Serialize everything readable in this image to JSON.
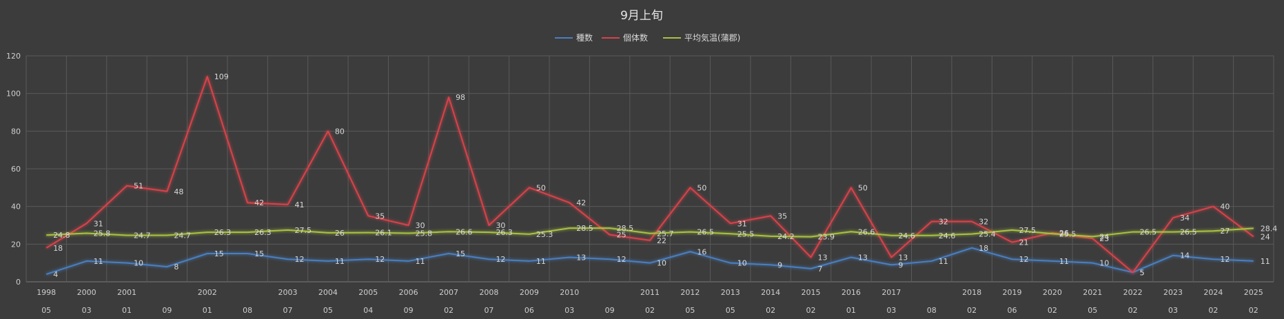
{
  "chart_data": {
    "type": "line",
    "title": "9月上旬",
    "xlabel": "",
    "ylabel": "",
    "ylim": [
      0,
      120
    ],
    "yticks": [
      "0",
      "20",
      "40",
      "60",
      "80",
      "100",
      "120"
    ],
    "grid": true,
    "legend_position": "top",
    "year_labels": [
      "1998",
      "2000",
      "2001",
      "",
      "2002",
      "",
      "2003",
      "2004",
      "2005",
      "2006",
      "2007",
      "2008",
      "2009",
      "2010",
      "",
      "2011",
      "2012",
      "2013",
      "2014",
      "2015",
      "2016",
      "2017",
      "",
      "2018",
      "2019",
      "2020",
      "2021",
      "2022",
      "2023",
      "2024",
      "2025"
    ],
    "day_labels": [
      "05",
      "03",
      "01",
      "09",
      "01",
      "08",
      "07",
      "05",
      "04",
      "09",
      "02",
      "07",
      "06",
      "03",
      "09",
      "02",
      "05",
      "05",
      "02",
      "02",
      "01",
      "03",
      "08",
      "02",
      "06",
      "02",
      "05",
      "02",
      "03",
      "02",
      "02"
    ],
    "series": [
      {
        "name": "種数",
        "color": "#4a7fc1",
        "values": [
          4,
          11,
          10,
          8,
          15,
          15,
          12,
          11,
          12,
          11,
          15,
          12,
          11,
          13,
          12,
          10,
          16,
          10,
          9,
          7,
          13,
          9,
          11,
          18,
          12,
          11,
          10,
          5,
          14,
          12,
          11
        ],
        "labels": [
          "4",
          "11",
          "10",
          "8",
          "15",
          "15",
          "12",
          "11",
          "12",
          "11",
          "15",
          "12",
          "11",
          "13",
          "12",
          "10",
          "16",
          "10",
          "9",
          "7",
          "13",
          "9",
          "11",
          "18",
          "12",
          "11",
          "10",
          "5",
          "14",
          "12",
          "11"
        ]
      },
      {
        "name": "個体数",
        "color": "#d9424a",
        "values": [
          18,
          31,
          51,
          48,
          109,
          42,
          41,
          80,
          35,
          30,
          98,
          30,
          50,
          42,
          25,
          22,
          50,
          31,
          35,
          13,
          50,
          13,
          32,
          32,
          21,
          26,
          23,
          5,
          34,
          40,
          24
        ],
        "labels": [
          "18",
          "31",
          "51",
          "48",
          "109",
          "42",
          "41",
          "80",
          "35",
          "30",
          "98",
          "30",
          "50",
          "42",
          "25",
          "22",
          "50",
          "31",
          "35",
          "13",
          "50",
          "13",
          "32",
          "32",
          "21",
          "26",
          "23",
          "5",
          "34",
          "40",
          "24"
        ]
      },
      {
        "name": "平均気温(蒲郡)",
        "color": "#a9c23f",
        "values": [
          24.8,
          25.8,
          24.7,
          24.7,
          26.3,
          26.3,
          27.5,
          26,
          26.1,
          25.8,
          26.6,
          26.3,
          25.3,
          28.5,
          28.5,
          25.7,
          26.5,
          25.5,
          24.2,
          23.9,
          26.6,
          24.6,
          24.6,
          25.4,
          27.5,
          25.5,
          24,
          26.5,
          26.5,
          27,
          28.4
        ],
        "labels": [
          "24.8",
          "25.8",
          "24.7",
          "24.7",
          "26.3",
          "26.3",
          "27.5",
          "26",
          "26.1",
          "25.8",
          "26.6",
          "26.3",
          "25.3",
          "28.5",
          "28.5",
          "25.7",
          "26.5",
          "25.5",
          "24.2",
          "23.9",
          "26.6",
          "24.6",
          "24.6",
          "25.4",
          "27.5",
          "25.5",
          "24",
          "26.5",
          "26.5",
          "27",
          "28.4"
        ]
      }
    ]
  }
}
